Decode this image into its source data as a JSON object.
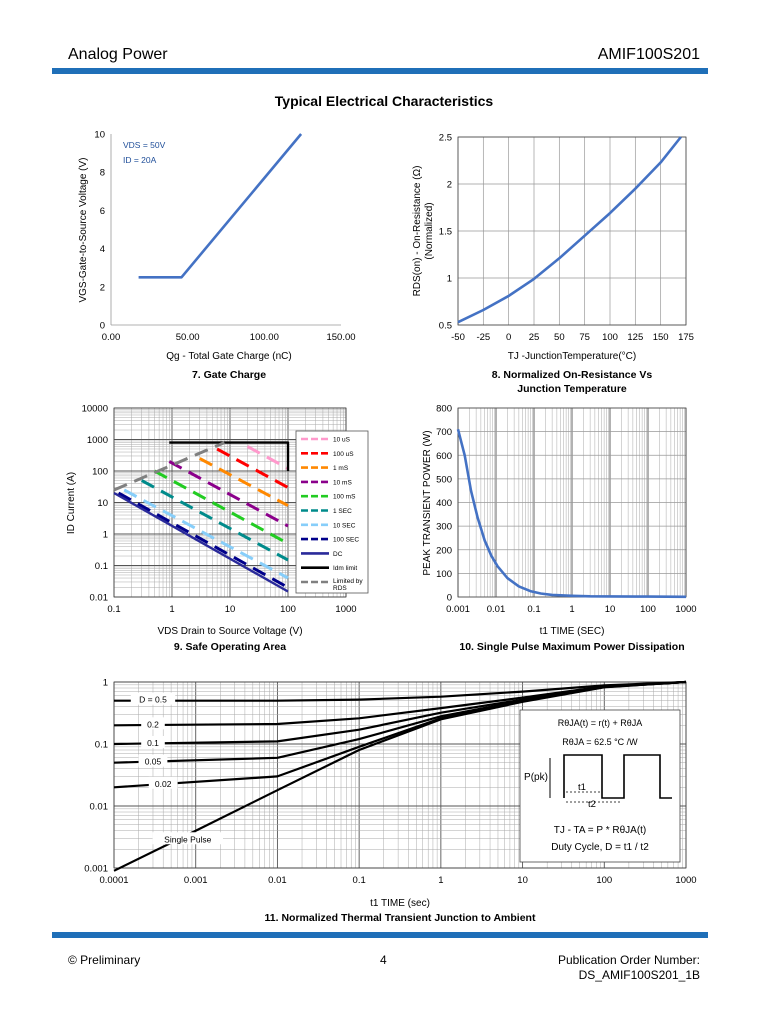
{
  "header": {
    "left": "Analog Power",
    "right": "AMIF100S201"
  },
  "page_title": "Typical Electrical Characteristics",
  "footer": {
    "left": "© Preliminary",
    "page_number": "4",
    "right_line1": "Publication Order Number:",
    "right_line2": "DS_AMIF100S201_1B"
  },
  "colors": {
    "accent_bar": "#1f6fb8",
    "curve_blue": "#4472c4"
  },
  "chart_data": [
    {
      "id": "gate",
      "type": "line",
      "caption": "7. Gate Charge",
      "xlabel": "Qg - Total Gate Charge (nC)",
      "ylabel": "VGS-Gate-to-Source Voltage (V)",
      "xlim": [
        0,
        150
      ],
      "ylim": [
        0,
        10
      ],
      "xticks": [
        "0.00",
        "50.00",
        "100.00",
        "150.00"
      ],
      "yticks": [
        "0",
        "2",
        "4",
        "6",
        "8",
        "10"
      ],
      "annotations": [
        "VDS = 50V",
        "ID = 20A"
      ],
      "grid": false,
      "series": [
        {
          "x": [
            18,
            46,
            124
          ],
          "y": [
            2.5,
            2.5,
            10
          ]
        }
      ]
    },
    {
      "id": "rdson",
      "type": "line",
      "caption_line1": "8. Normalized On-Resistance Vs",
      "caption_line2": "Junction Temperature",
      "xlabel": "TJ -JunctionTemperature(°C)",
      "ylabel_line1": "RDS(on) - On-Resistance (Ω)",
      "ylabel_line2": "(Normalized)",
      "xlim": [
        -50,
        175
      ],
      "ylim": [
        0.5,
        2.5
      ],
      "xticks": [
        "-50",
        "-25",
        "0",
        "25",
        "50",
        "75",
        "100",
        "125",
        "150",
        "175"
      ],
      "yticks": [
        "0.5",
        "1",
        "1.5",
        "2",
        "2.5"
      ],
      "grid": true,
      "series": [
        {
          "x": [
            -50,
            -25,
            0,
            25,
            50,
            75,
            100,
            125,
            150,
            170
          ],
          "y": [
            0.53,
            0.66,
            0.81,
            0.99,
            1.21,
            1.45,
            1.69,
            1.95,
            2.23,
            2.5
          ]
        }
      ]
    },
    {
      "id": "soa",
      "type": "line",
      "caption": "9. Safe Operating Area",
      "xlabel": "VDS Drain to Source Voltage (V)",
      "ylabel": "ID Current (A)",
      "xscale": "log",
      "yscale": "log",
      "xlim": [
        0.1,
        1000
      ],
      "ylim": [
        0.01,
        10000
      ],
      "xticks": [
        "0.1",
        "1",
        "10",
        "100",
        "1000"
      ],
      "yticks": [
        "0.01",
        "0.1",
        "1",
        "10",
        "100",
        "1000",
        "10000"
      ],
      "legend_position": "right-inside",
      "grid": true,
      "series": [
        {
          "name": "10 uS",
          "color": "#ff99cc",
          "dashed": true,
          "x": [
            20,
            100
          ],
          "y": [
            600,
            120
          ]
        },
        {
          "name": "100 uS",
          "color": "#ff0000",
          "dashed": true,
          "x": [
            6,
            100
          ],
          "y": [
            500,
            30
          ]
        },
        {
          "name": "1 mS",
          "color": "#ff8800",
          "dashed": true,
          "x": [
            3,
            100
          ],
          "y": [
            250,
            8
          ]
        },
        {
          "name": "10 mS",
          "color": "#8b008b",
          "dashed": true,
          "x": [
            0.9,
            100
          ],
          "y": [
            200,
            1.8
          ]
        },
        {
          "name": "100 mS",
          "color": "#22cc22",
          "dashed": true,
          "x": [
            0.5,
            100
          ],
          "y": [
            100,
            0.5
          ]
        },
        {
          "name": "1 SEC",
          "color": "#008b8b",
          "dashed": true,
          "x": [
            0.3,
            100
          ],
          "y": [
            50,
            0.15
          ]
        },
        {
          "name": "10 SEC",
          "color": "#87cefa",
          "dashed": true,
          "x": [
            0.15,
            100
          ],
          "y": [
            25,
            0.04
          ]
        },
        {
          "name": "100 SEC",
          "color": "#00008b",
          "dashed": true,
          "x": [
            0.12,
            100
          ],
          "y": [
            20,
            0.02
          ]
        },
        {
          "name": "DC",
          "color": "#2a2a9a",
          "dashed": false,
          "x": [
            0.1,
            100
          ],
          "y": [
            20,
            0.015
          ]
        },
        {
          "name": "Idm limit",
          "color": "#000000",
          "dashed": false,
          "x": [
            0.9,
            100,
            100
          ],
          "y": [
            800,
            800,
            100
          ]
        },
        {
          "name": "Limited by RDS",
          "color": "#808080",
          "dashed": true,
          "x": [
            0.1,
            8
          ],
          "y": [
            25,
            800
          ]
        }
      ]
    },
    {
      "id": "pulse",
      "type": "line",
      "caption": "10. Single Pulse Maximum Power Dissipation",
      "xlabel": "t1 TIME (SEC)",
      "ylabel": "PEAK TRANSIENT POWER (W)",
      "xscale": "log",
      "xlim": [
        0.001,
        1000
      ],
      "ylim": [
        0,
        800
      ],
      "xticks": [
        "0.001",
        "0.01",
        "0.1",
        "1",
        "10",
        "100",
        "1000"
      ],
      "yticks": [
        "0",
        "100",
        "200",
        "300",
        "400",
        "500",
        "600",
        "700",
        "800"
      ],
      "grid": true,
      "series": [
        {
          "x": [
            0.001,
            0.0015,
            0.0022,
            0.0033,
            0.005,
            0.0075,
            0.011,
            0.02,
            0.04,
            0.08,
            0.15,
            0.3,
            1,
            3,
            10,
            100,
            1000
          ],
          "y": [
            710,
            600,
            450,
            335,
            240,
            175,
            130,
            80,
            45,
            25,
            15,
            9,
            5,
            3,
            2.5,
            1.5,
            1
          ]
        }
      ]
    },
    {
      "id": "thermal",
      "type": "line",
      "caption": "11. Normalized Thermal Transient Junction to Ambient",
      "xlabel": "t1 TIME (sec)",
      "xscale": "log",
      "yscale": "log",
      "xlim": [
        0.0001,
        1000
      ],
      "ylim": [
        0.001,
        1
      ],
      "xticks": [
        "0.0001",
        "0.001",
        "0.01",
        "0.1",
        "1",
        "10",
        "100",
        "1000"
      ],
      "yticks": [
        "0.001",
        "0.01",
        "0.1",
        "1"
      ],
      "grid": true,
      "series": [
        {
          "name": "D = 0.5",
          "x": [
            0.0001,
            0.01,
            0.1,
            1,
            10,
            100,
            1000
          ],
          "y": [
            0.5,
            0.5,
            0.52,
            0.58,
            0.7,
            0.88,
            1.0
          ]
        },
        {
          "name": "0.2",
          "x": [
            0.0001,
            0.01,
            0.1,
            1,
            10,
            100,
            1000
          ],
          "y": [
            0.2,
            0.21,
            0.26,
            0.38,
            0.56,
            0.85,
            1.0
          ]
        },
        {
          "name": "0.1",
          "x": [
            0.0001,
            0.01,
            0.1,
            1,
            10,
            100,
            1000
          ],
          "y": [
            0.1,
            0.11,
            0.17,
            0.32,
            0.52,
            0.84,
            1.0
          ]
        },
        {
          "name": "0.05",
          "x": [
            0.0001,
            0.01,
            0.1,
            1,
            10,
            100,
            1000
          ],
          "y": [
            0.05,
            0.06,
            0.12,
            0.28,
            0.5,
            0.83,
            1.0
          ]
        },
        {
          "name": "0.02",
          "x": [
            0.0001,
            0.01,
            0.1,
            1,
            10,
            100,
            1000
          ],
          "y": [
            0.02,
            0.03,
            0.09,
            0.26,
            0.49,
            0.83,
            1.0
          ]
        },
        {
          "name": "Single Pulse",
          "x": [
            0.0001,
            0.001,
            0.01,
            0.1,
            1,
            10,
            100,
            1000
          ],
          "y": [
            0.0009,
            0.004,
            0.018,
            0.08,
            0.25,
            0.48,
            0.82,
            1.0
          ]
        }
      ],
      "inset": {
        "line1": "RθJA(t) = r(t) + RθJA",
        "line2": "RθJA = 62.5 °C /W",
        "ppk": "P(pk)",
        "t1": "t1",
        "t2": "t2",
        "line3": "TJ - TA = P * RθJA(t)",
        "line4": "Duty Cycle, D = t1 / t2"
      }
    }
  ]
}
